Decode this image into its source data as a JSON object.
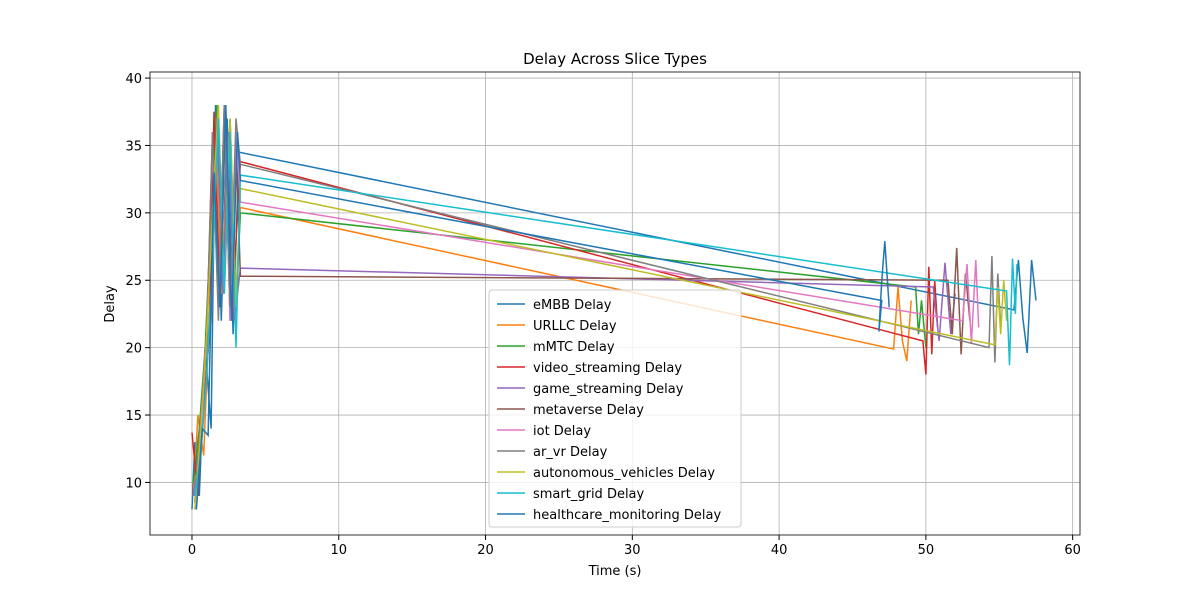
{
  "chart_data": {
    "type": "line",
    "title": "Delay Across Slice Types",
    "x_label": "Time (s)",
    "y_label": "Delay",
    "xlim": [
      -2.86,
      60.5
    ],
    "ylim": [
      6.1,
      40.45
    ],
    "xticks": [
      0,
      10,
      20,
      30,
      40,
      50,
      60
    ],
    "yticks": [
      10,
      15,
      20,
      25,
      30,
      35,
      40
    ],
    "grid": true,
    "legend": "lower center",
    "series": [
      {
        "name": "eMBB Delay",
        "color": "#1f77b4",
        "x": [
          0,
          0.2,
          0.5,
          0.9,
          1.3,
          1.6,
          2.0,
          2.4,
          2.8,
          3.2,
          56.0,
          56.3,
          56.6,
          56.9,
          57.2,
          57.5
        ],
        "values": [
          8,
          13,
          9,
          20,
          14,
          38,
          22,
          37,
          21,
          34.5,
          22.8,
          26.5,
          22.2,
          19.6,
          26.5,
          23.5
        ]
      },
      {
        "name": "URLLC Delay",
        "color": "#ff7f0e",
        "x": [
          0.1,
          0.4,
          0.8,
          1.2,
          1.6,
          2.0,
          2.5,
          2.9,
          3.3,
          47.8,
          48.1,
          48.4,
          48.7,
          49.0
        ],
        "values": [
          9,
          15,
          12,
          23,
          37,
          24,
          36,
          22,
          30.4,
          19.9,
          24.5,
          20.5,
          19.0,
          23.5
        ]
      },
      {
        "name": "mMTC Delay",
        "color": "#2ca02c",
        "x": [
          0.1,
          0.5,
          0.9,
          1.3,
          1.7,
          2.1,
          2.6,
          3.0,
          3.3,
          49.3,
          49.5,
          49.7,
          50.0
        ],
        "values": [
          10,
          14,
          20,
          30,
          38,
          25,
          37,
          23,
          30.0,
          24.5,
          21,
          23.5,
          20
        ]
      },
      {
        "name": "video_streaming Delay",
        "color": "#d62728",
        "x": [
          0,
          0.4,
          0.8,
          1.2,
          1.5,
          1.9,
          2.3,
          2.7,
          3.3,
          49.8,
          50.0,
          50.2,
          50.4,
          50.6,
          50.8
        ],
        "values": [
          13.7,
          9,
          16,
          21,
          37.5,
          23,
          38,
          22,
          33.8,
          20.5,
          18.0,
          26.0,
          19.5,
          25.0,
          21.5
        ]
      },
      {
        "name": "game_streaming Delay",
        "color": "#9467bd",
        "x": [
          0.1,
          0.5,
          0.9,
          1.3,
          1.7,
          2.1,
          2.5,
          2.9,
          3.3,
          50.5,
          50.9,
          51.3,
          51.7,
          52.0
        ],
        "values": [
          9,
          12,
          20,
          22,
          37,
          24,
          36,
          22,
          25.9,
          24.5,
          20.5,
          26.3,
          21.0,
          24.0
        ]
      },
      {
        "name": "metaverse Delay",
        "color": "#8c564b",
        "x": [
          0.2,
          0.6,
          1.0,
          1.4,
          1.8,
          2.2,
          2.6,
          3.0,
          3.3,
          51.5,
          51.8,
          52.1,
          52.4,
          52.7,
          53.0
        ],
        "values": [
          8.5,
          14,
          21,
          36,
          23,
          38,
          22,
          35,
          25.3,
          25.0,
          21.0,
          27.4,
          19.5,
          25.5,
          22.0
        ]
      },
      {
        "name": "iot Delay",
        "color": "#e377c2",
        "x": [
          0.2,
          0.6,
          1.0,
          1.4,
          1.8,
          2.2,
          2.6,
          3.0,
          3.3,
          52.5,
          52.8,
          53.1,
          53.4,
          53.6
        ],
        "values": [
          8,
          13,
          21,
          35,
          23,
          38,
          22,
          36,
          30.8,
          22.0,
          26.2,
          20.3,
          26.5,
          21.5
        ]
      },
      {
        "name": "ar_vr Delay",
        "color": "#7f7f7f",
        "x": [
          0.2,
          0.6,
          1.0,
          1.4,
          1.8,
          2.2,
          2.6,
          3.0,
          3.3,
          54.3,
          54.5,
          54.7,
          54.9,
          55.1
        ],
        "values": [
          9,
          15,
          20,
          36,
          22,
          38,
          23,
          37,
          33.6,
          20.0,
          26.8,
          18.9,
          25.5,
          21.5
        ]
      },
      {
        "name": "autonomous_vehicles Delay",
        "color": "#bcbd22",
        "x": [
          0.2,
          0.6,
          1.0,
          1.4,
          1.8,
          2.2,
          2.6,
          3.0,
          3.3,
          54.7,
          54.9,
          55.1,
          55.3,
          55.5
        ],
        "values": [
          8,
          14,
          21,
          30,
          38,
          24,
          37,
          23,
          31.8,
          20.2,
          24.5,
          21.0,
          25.0,
          22.0
        ]
      },
      {
        "name": "smart_grid Delay",
        "color": "#17becf",
        "x": [
          0.2,
          0.6,
          1.0,
          1.4,
          1.8,
          2.2,
          2.6,
          3.0,
          3.3,
          55.5,
          55.7,
          55.9,
          56.1,
          56.2
        ],
        "values": [
          9,
          12,
          18,
          26,
          37,
          24,
          36,
          20,
          32.8,
          24.2,
          18.7,
          26.6,
          22.5,
          26.2
        ]
      },
      {
        "name": "healthcare_monitoring Delay",
        "color": "#1f77b4",
        "x": [
          0.3,
          0.7,
          1.1,
          1.5,
          1.9,
          2.3,
          2.7,
          3.1,
          3.3,
          47.0,
          46.8,
          47.0,
          47.2,
          47.5
        ],
        "values": [
          8,
          14,
          13.5,
          33,
          23,
          38,
          22,
          36,
          32.4,
          23.5,
          21.2,
          25.0,
          27.9,
          23.0
        ]
      }
    ]
  }
}
